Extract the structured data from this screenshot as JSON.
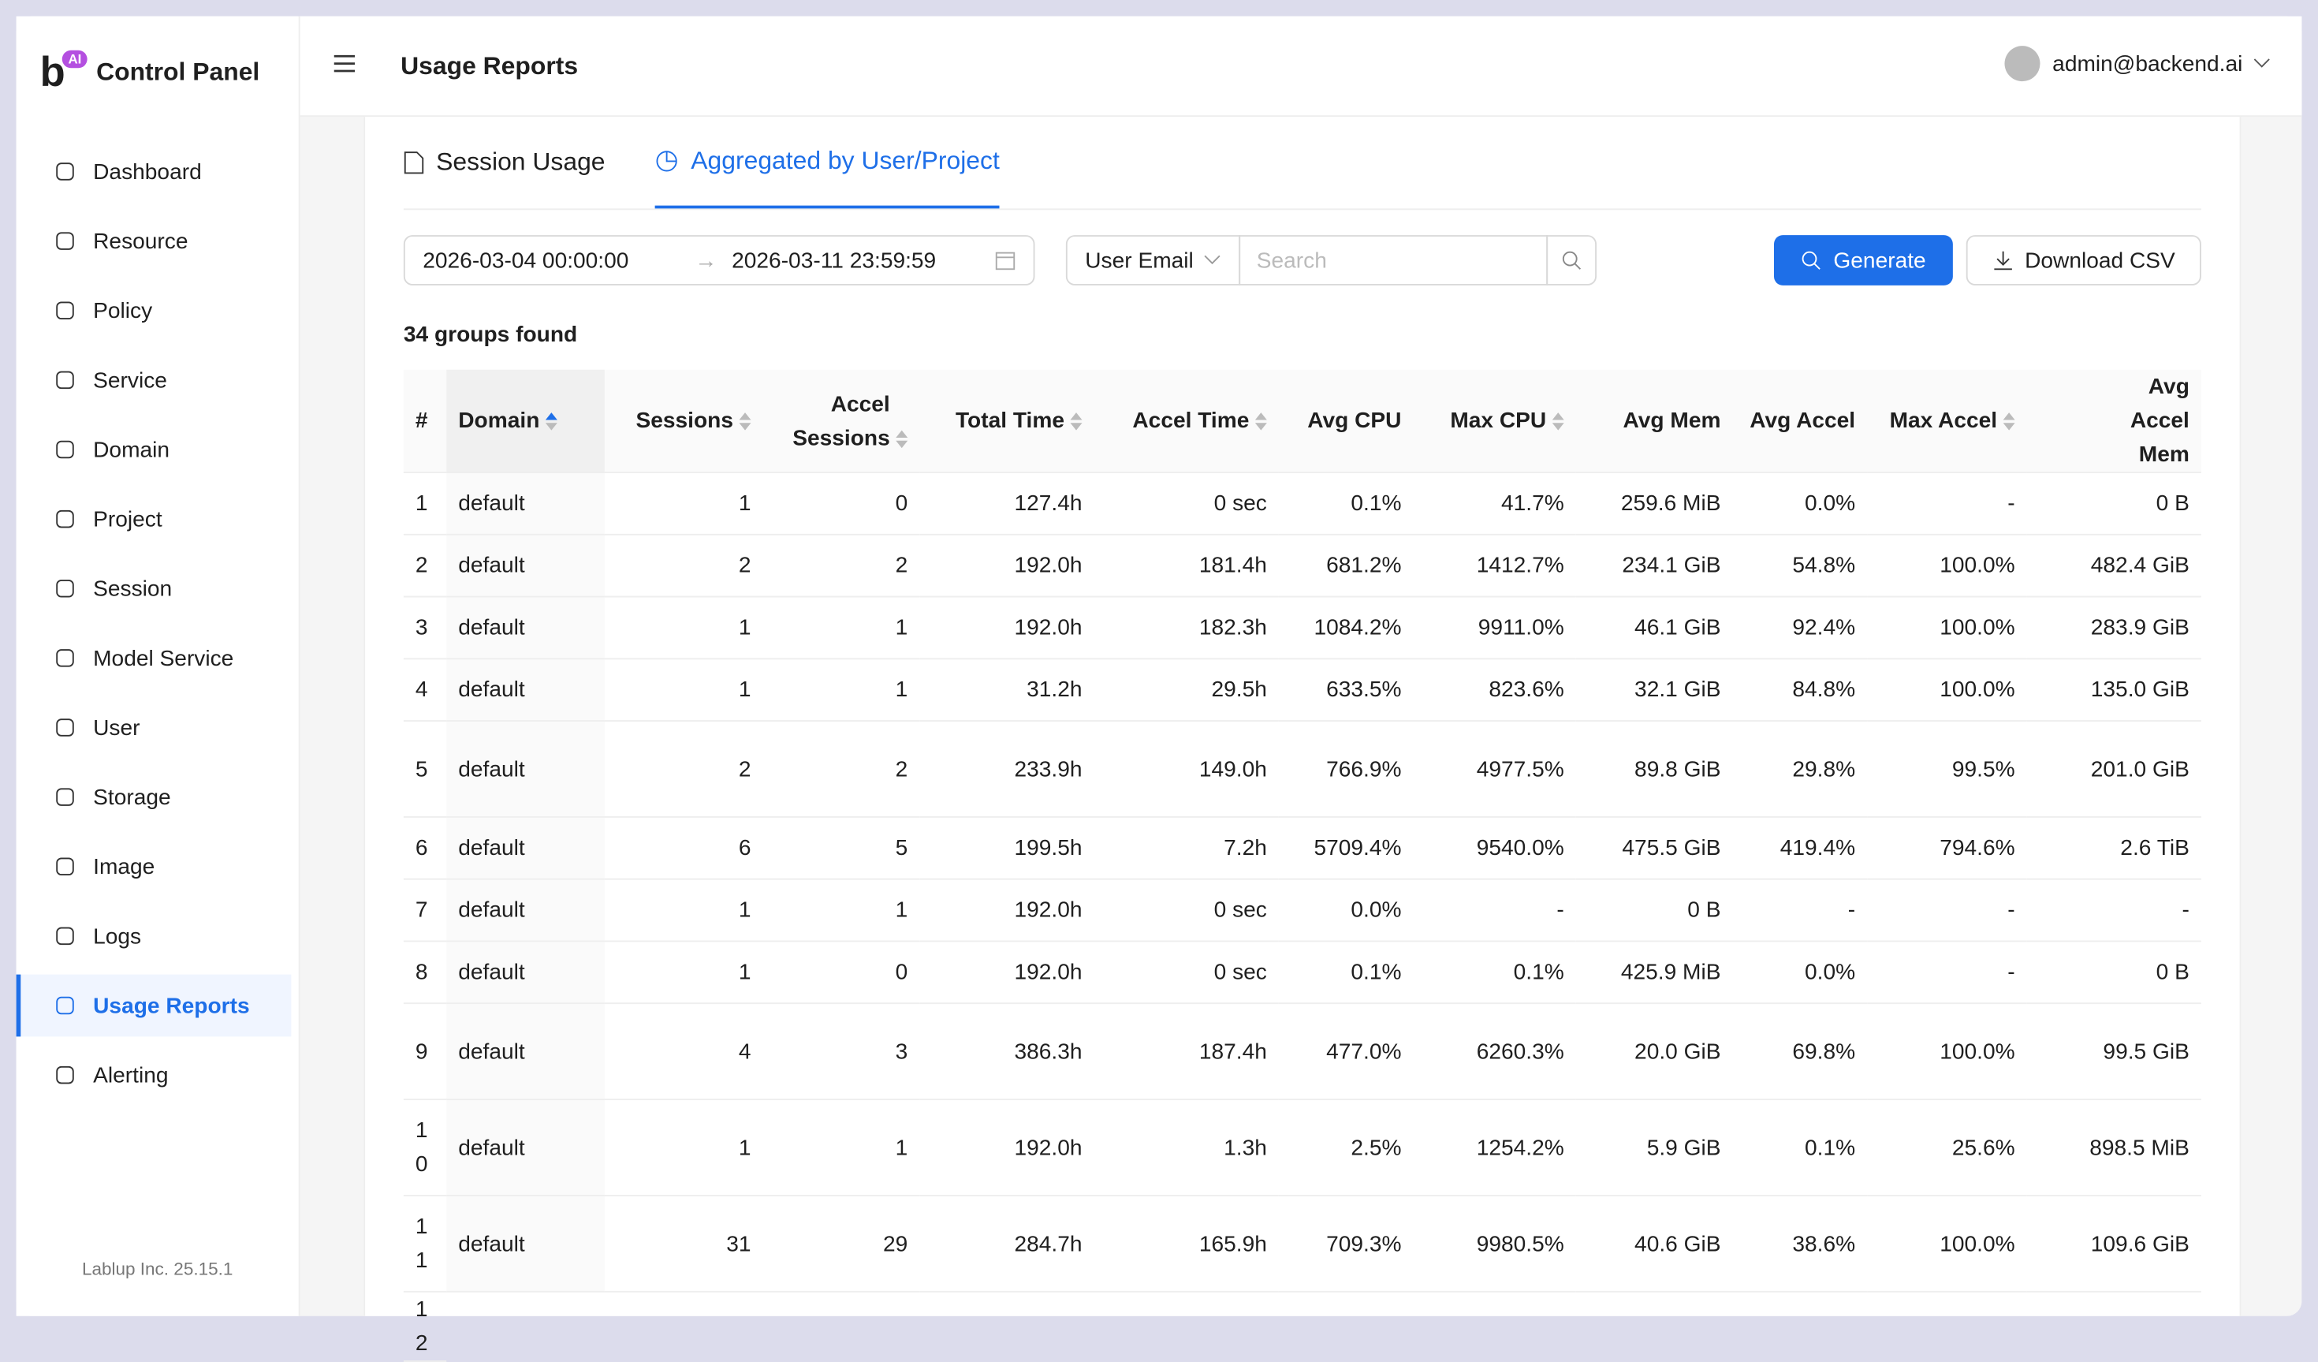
{
  "sidebar": {
    "brand": "Control Panel",
    "brand_badge": "AI",
    "items": [
      "Dashboard",
      "Resource",
      "Policy",
      "Service",
      "Domain",
      "Project",
      "Session",
      "Model Service",
      "User",
      "Storage",
      "Image",
      "Logs",
      "Usage Reports",
      "Alerting"
    ],
    "active": 12,
    "footer": "Lablup Inc. 25.15.1"
  },
  "header": {
    "title": "Usage Reports",
    "user": "admin@backend.ai"
  },
  "tabs": [
    "Session Usage",
    "Aggregated by User/Project"
  ],
  "filters": {
    "start": "2026-03-04 00:00:00",
    "end": "2026-03-11 23:59:59",
    "field": "User Email",
    "search_placeholder": "Search",
    "generate": "Generate",
    "download": "Download CSV"
  },
  "summary": "34 groups found",
  "table": {
    "columns": [
      "#",
      "Domain",
      "Sessions",
      "Accel Sessions",
      "Total Time",
      "Accel Time",
      "Avg CPU",
      "Max CPU",
      "Avg Mem",
      "Avg Accel",
      "Max Accel",
      "Avg Accel Mem"
    ],
    "rows": [
      [
        "1",
        "default",
        "1",
        "0",
        "127.4h",
        "0 sec",
        "0.1%",
        "41.7%",
        "259.6 MiB",
        "0.0%",
        "-",
        "0 B"
      ],
      [
        "2",
        "default",
        "2",
        "2",
        "192.0h",
        "181.4h",
        "681.2%",
        "1412.7%",
        "234.1 GiB",
        "54.8%",
        "100.0%",
        "482.4 GiB"
      ],
      [
        "3",
        "default",
        "1",
        "1",
        "192.0h",
        "182.3h",
        "1084.2%",
        "9911.0%",
        "46.1 GiB",
        "92.4%",
        "100.0%",
        "283.9 GiB"
      ],
      [
        "4",
        "default",
        "1",
        "1",
        "31.2h",
        "29.5h",
        "633.5%",
        "823.6%",
        "32.1 GiB",
        "84.8%",
        "100.0%",
        "135.0 GiB"
      ],
      [
        "5",
        "default",
        "2",
        "2",
        "233.9h",
        "149.0h",
        "766.9%",
        "4977.5%",
        "89.8 GiB",
        "29.8%",
        "99.5%",
        "201.0 GiB"
      ],
      [
        "6",
        "default",
        "6",
        "5",
        "199.5h",
        "7.2h",
        "5709.4%",
        "9540.0%",
        "475.5 GiB",
        "419.4%",
        "794.6%",
        "2.6 TiB"
      ],
      [
        "7",
        "default",
        "1",
        "1",
        "192.0h",
        "0 sec",
        "0.0%",
        "-",
        "0 B",
        "-",
        "-",
        "-"
      ],
      [
        "8",
        "default",
        "1",
        "0",
        "192.0h",
        "0 sec",
        "0.1%",
        "0.1%",
        "425.9 MiB",
        "0.0%",
        "-",
        "0 B"
      ],
      [
        "9",
        "default",
        "4",
        "3",
        "386.3h",
        "187.4h",
        "477.0%",
        "6260.3%",
        "20.0 GiB",
        "69.8%",
        "100.0%",
        "99.5 GiB"
      ],
      [
        "10",
        "default",
        "1",
        "1",
        "192.0h",
        "1.3h",
        "2.5%",
        "1254.2%",
        "5.9 GiB",
        "0.1%",
        "25.6%",
        "898.5 MiB"
      ],
      [
        "11",
        "default",
        "31",
        "29",
        "284.7h",
        "165.9h",
        "709.3%",
        "9980.5%",
        "40.6 GiB",
        "38.6%",
        "100.0%",
        "109.6 GiB"
      ],
      [
        "12"
      ]
    ]
  }
}
